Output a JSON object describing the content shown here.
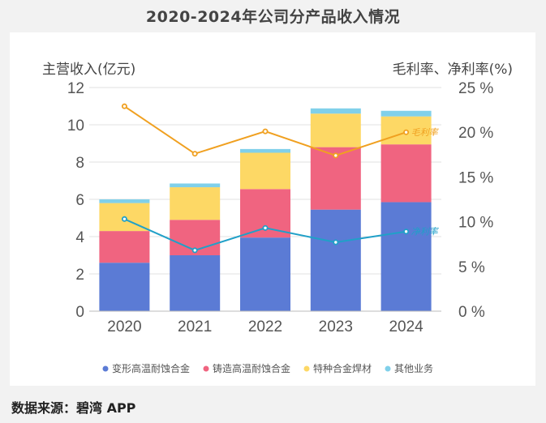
{
  "chart_data": {
    "type": "bar",
    "title": "2020-2024年公司分产品收入情况",
    "ylabel_left": "主营收入(亿元)",
    "ylabel_right": "毛利率、净利率(%)",
    "categories": [
      "2020",
      "2021",
      "2022",
      "2023",
      "2024"
    ],
    "ylim_left": [
      0,
      12
    ],
    "yticks_left": [
      "0",
      "2",
      "4",
      "6",
      "8",
      "10",
      "12"
    ],
    "ylim_right": [
      0,
      25
    ],
    "yticks_right": [
      "0 %",
      "5 %",
      "10 %",
      "15 %",
      "20 %",
      "25 %"
    ],
    "stacked": true,
    "series": [
      {
        "name": "变形高温耐蚀合金",
        "color": "#5b7bd5",
        "values": [
          2.6,
          3.0,
          3.95,
          5.45,
          5.85
        ]
      },
      {
        "name": "铸造高温耐蚀合金",
        "color": "#f06480",
        "values": [
          1.7,
          1.9,
          2.6,
          3.35,
          3.1
        ]
      },
      {
        "name": "特种合金焊材",
        "color": "#fdd865",
        "values": [
          1.5,
          1.75,
          1.95,
          1.8,
          1.5
        ]
      },
      {
        "name": "其他业务",
        "color": "#80d0ea",
        "values": [
          0.2,
          0.2,
          0.2,
          0.28,
          0.3
        ]
      }
    ],
    "lines": [
      {
        "name": "毛利率",
        "label": "毛利率",
        "color": "#f0a020",
        "values": [
          22.9,
          17.6,
          20.1,
          17.4,
          20.0
        ]
      },
      {
        "name": "净利率",
        "label": "净利率",
        "color": "#20a0c8",
        "values": [
          10.3,
          6.8,
          9.3,
          7.7,
          8.9
        ]
      }
    ]
  },
  "source": "数据来源：碧湾 APP"
}
